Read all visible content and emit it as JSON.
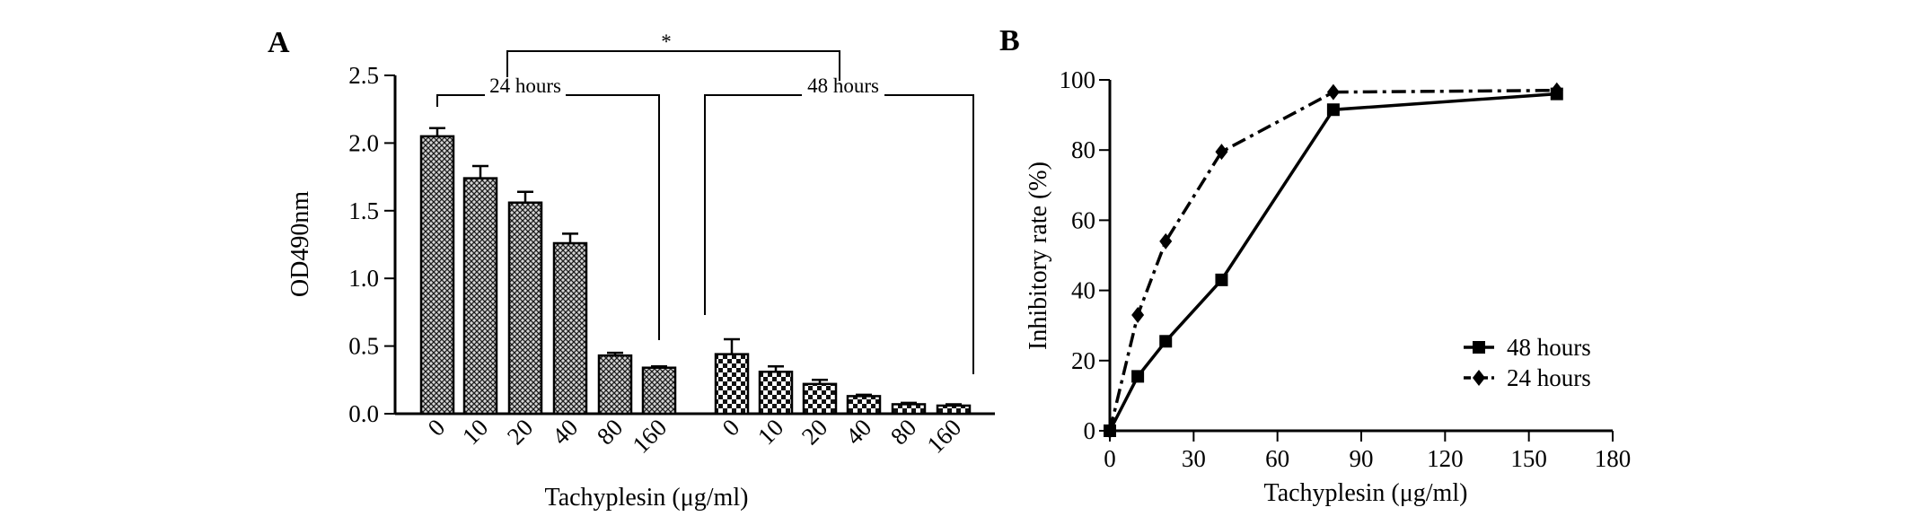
{
  "chart_data": [
    {
      "panel": "A",
      "type": "bar",
      "xlabel": "Tachyplesin (μg/ml)",
      "ylabel": "OD490nm",
      "ylim": [
        0,
        2.5
      ],
      "yticks": [
        "0.0",
        "0.5",
        "1.0",
        "1.5",
        "2.0",
        "2.5"
      ],
      "grid": false,
      "groups": [
        {
          "name": "24 hours",
          "categories": [
            "0",
            "10",
            "20",
            "40",
            "80",
            "160"
          ],
          "values": [
            2.05,
            1.74,
            1.56,
            1.26,
            0.43,
            0.34
          ],
          "errors": [
            0.06,
            0.09,
            0.08,
            0.07,
            0.02,
            0.01
          ],
          "pattern": "crosshatch"
        },
        {
          "name": "48 hours",
          "categories": [
            "0",
            "10",
            "20",
            "40",
            "80",
            "160"
          ],
          "values": [
            0.44,
            0.31,
            0.22,
            0.13,
            0.07,
            0.06
          ],
          "errors": [
            0.11,
            0.04,
            0.03,
            0.01,
            0.01,
            0.01
          ],
          "pattern": "checker"
        }
      ],
      "significance": "*"
    },
    {
      "panel": "B",
      "type": "line",
      "xlabel": "Tachyplesin (μg/ml)",
      "ylabel": "Inhibitory rate (%)",
      "xlim": [
        0,
        180
      ],
      "ylim": [
        0,
        100
      ],
      "xticks": [
        "0",
        "30",
        "60",
        "90",
        "120",
        "150",
        "180"
      ],
      "yticks": [
        "0",
        "20",
        "40",
        "60",
        "80",
        "100"
      ],
      "grid": false,
      "legend_position": "bottom-right",
      "series": [
        {
          "name": "48 hours",
          "marker": "square",
          "line": "solid",
          "x": [
            0,
            10,
            20,
            40,
            80,
            160
          ],
          "y": [
            0,
            15.5,
            25.5,
            43,
            91.5,
            96
          ]
        },
        {
          "name": "24 hours",
          "marker": "diamond",
          "line": "dash-dot",
          "x": [
            0,
            10,
            20,
            40,
            80,
            160
          ],
          "y": [
            0,
            33,
            54,
            79.5,
            96.5,
            97
          ]
        }
      ]
    }
  ]
}
